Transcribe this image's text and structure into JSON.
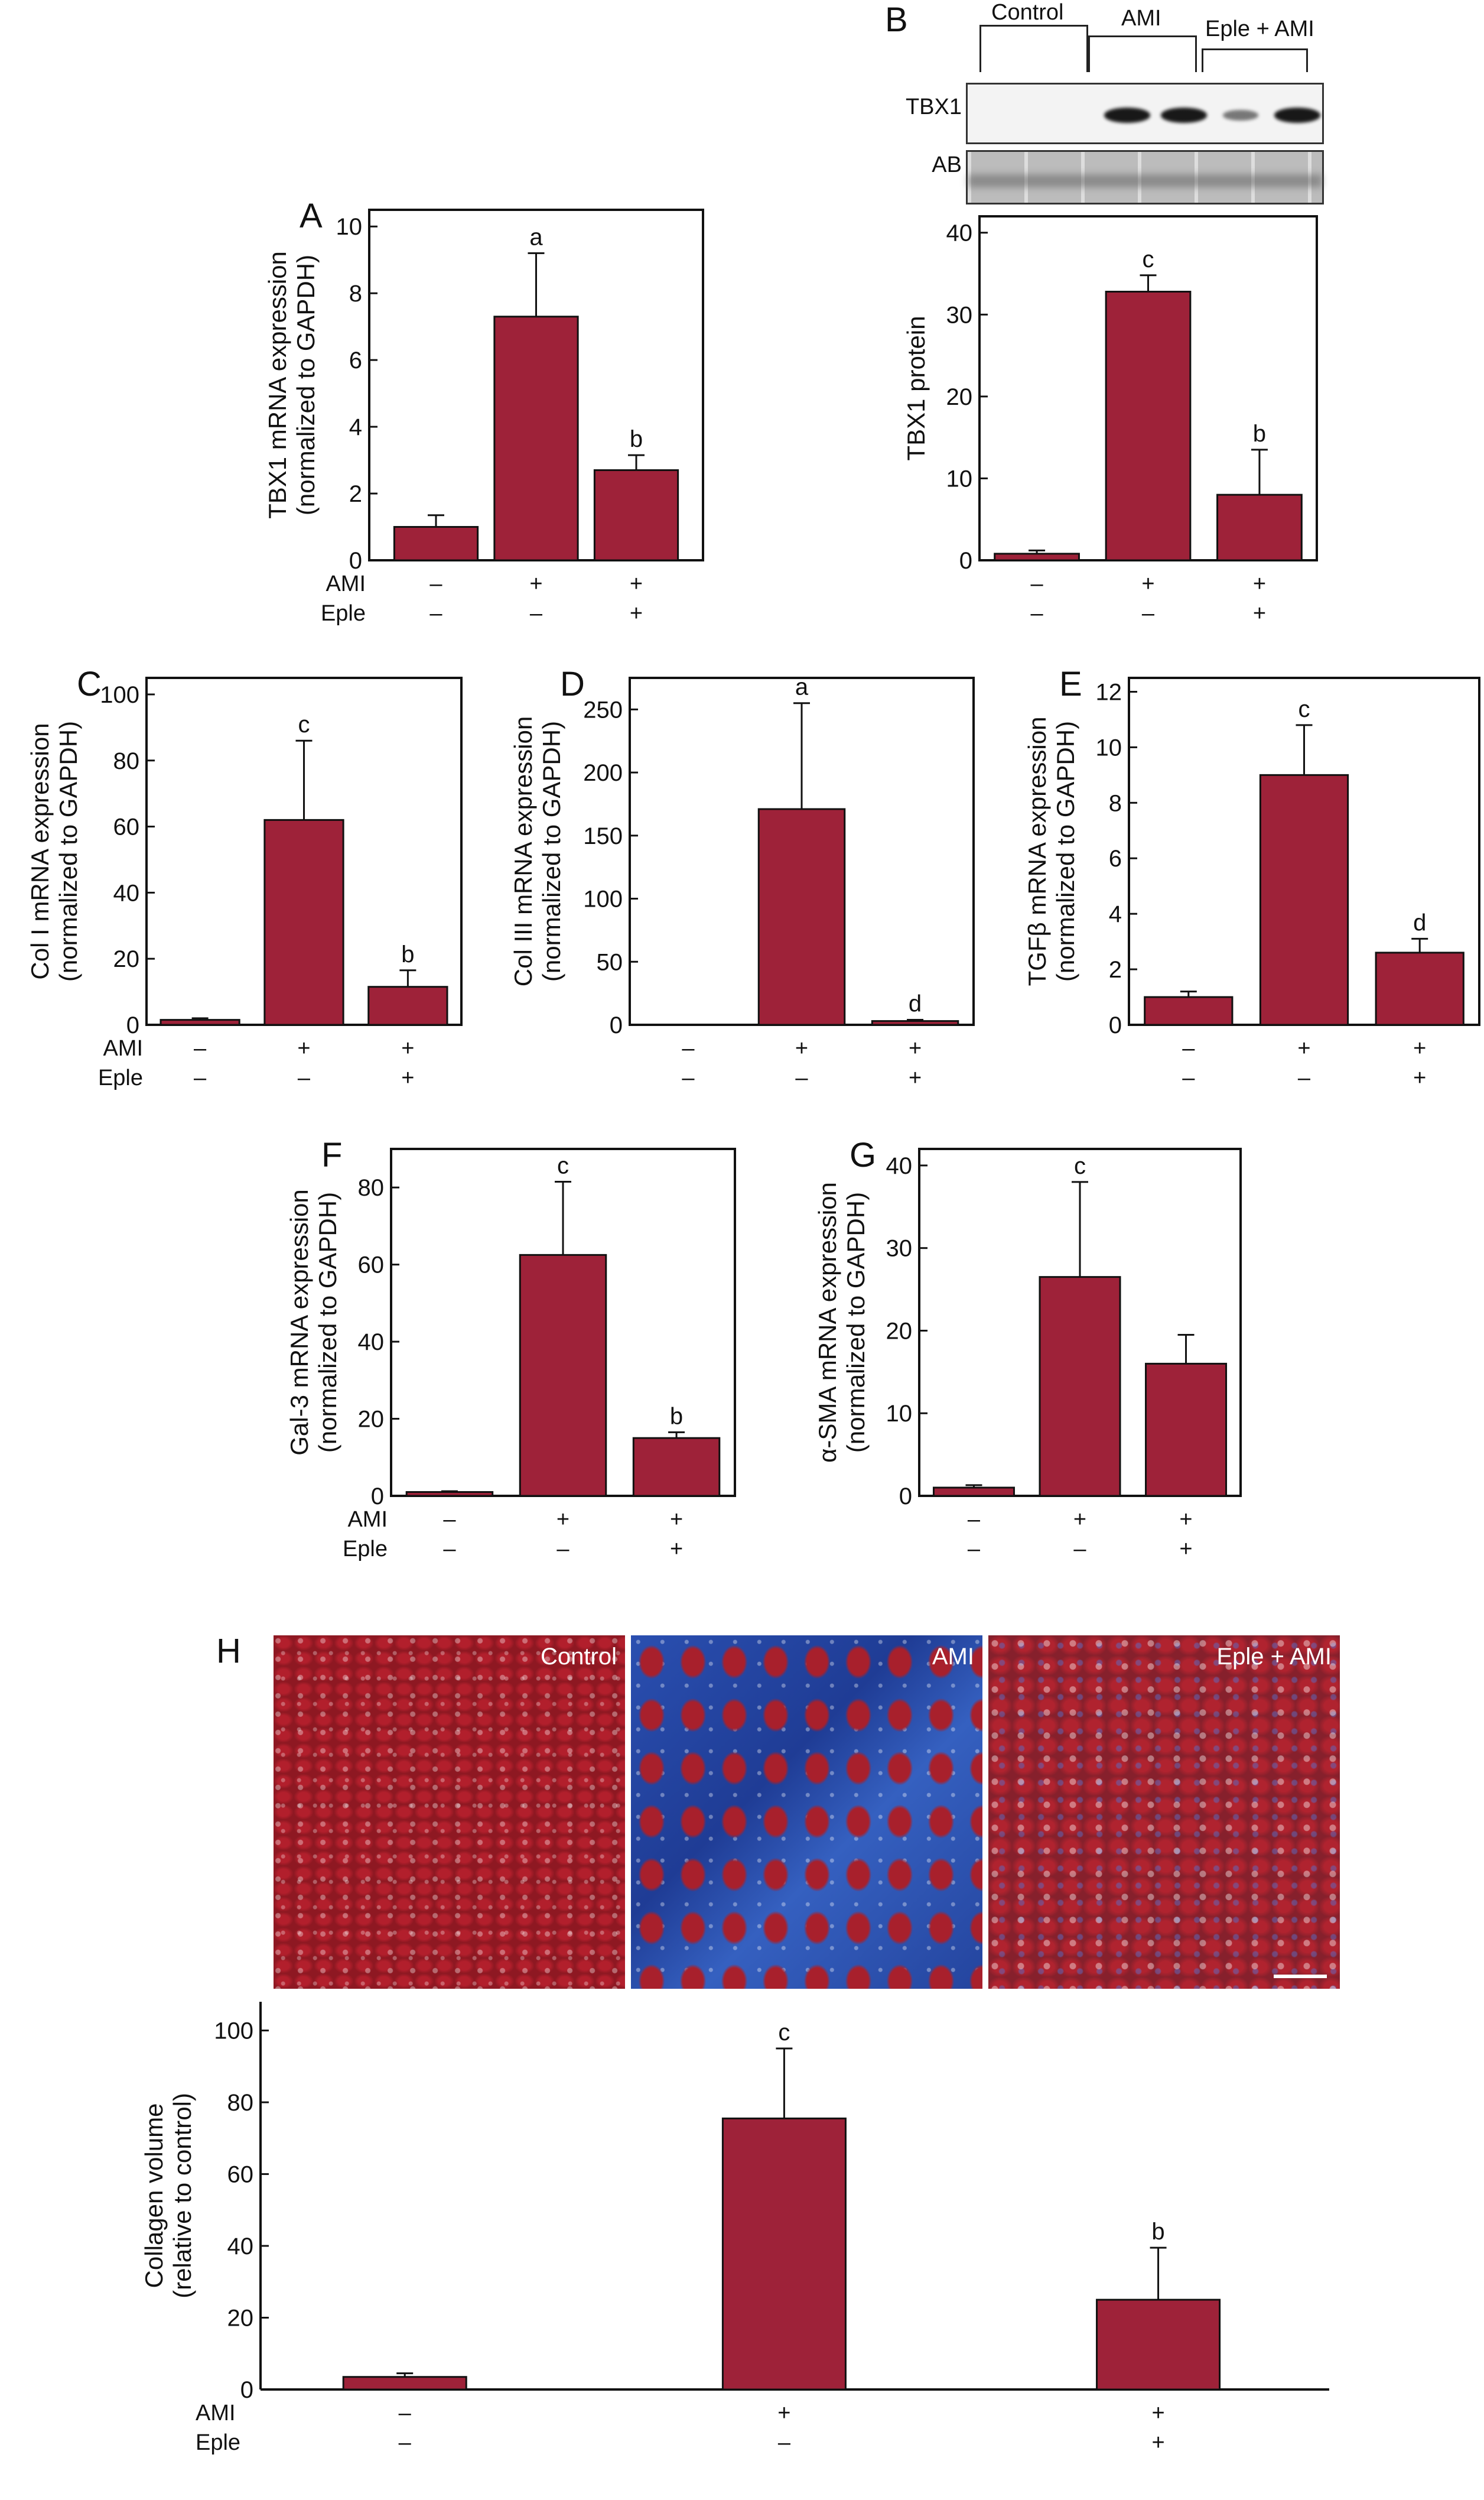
{
  "colors": {
    "bar": "#9e2239",
    "axis": "#111111"
  },
  "blot": {
    "panel_letter": "B",
    "groups": [
      "Control",
      "AMI",
      "Eple + AMI"
    ],
    "rows": [
      "TBX1",
      "AB"
    ],
    "tbx1_band_intensity": [
      0,
      0,
      0.95,
      0.95,
      0.35,
      0.95
    ]
  },
  "histology": {
    "panel_letter": "H",
    "images": [
      {
        "label": "Control"
      },
      {
        "label": "AMI"
      },
      {
        "label": "Eple + AMI"
      }
    ]
  },
  "chart_data": [
    {
      "id": "A",
      "panel_letter": "A",
      "type": "bar",
      "ylabel": [
        "TBX1 mRNA expression",
        "(normalized to GAPDH)"
      ],
      "ticks": [
        0,
        2,
        4,
        6,
        8,
        10
      ],
      "ylim": [
        0,
        10.5
      ],
      "values": [
        1.0,
        7.3,
        2.7
      ],
      "error_upper": [
        1.35,
        9.2,
        3.15
      ],
      "letters": [
        "",
        "a",
        "b"
      ],
      "conditions": [
        {
          "label": "AMI",
          "marks": [
            "–",
            "+",
            "+"
          ]
        },
        {
          "label": "Eple",
          "marks": [
            "–",
            "–",
            "+"
          ]
        }
      ]
    },
    {
      "id": "B",
      "panel_letter": "",
      "type": "bar",
      "ylabel": [
        "TBX1 protein"
      ],
      "ticks": [
        0,
        10,
        20,
        30,
        40
      ],
      "ylim": [
        0,
        42
      ],
      "values": [
        0.8,
        32.8,
        8.0
      ],
      "error_upper": [
        1.2,
        34.8,
        13.5
      ],
      "letters": [
        "",
        "c",
        "b"
      ],
      "conditions": [
        {
          "label": "",
          "marks": [
            "–",
            "+",
            "+"
          ]
        },
        {
          "label": "",
          "marks": [
            "–",
            "–",
            "+"
          ]
        }
      ]
    },
    {
      "id": "C",
      "panel_letter": "C",
      "type": "bar",
      "ylabel": [
        "Col I mRNA expression",
        "(normalized to GAPDH)"
      ],
      "ticks": [
        0,
        20,
        40,
        60,
        80,
        100
      ],
      "ylim": [
        0,
        105
      ],
      "values": [
        1.5,
        62,
        11.5
      ],
      "error_upper": [
        2,
        86,
        16.5
      ],
      "letters": [
        "",
        "c",
        "b"
      ],
      "conditions": [
        {
          "label": "AMI",
          "marks": [
            "–",
            "+",
            "+"
          ]
        },
        {
          "label": "Eple",
          "marks": [
            "–",
            "–",
            "+"
          ]
        }
      ]
    },
    {
      "id": "D",
      "panel_letter": "D",
      "type": "bar",
      "ylabel": [
        "Col III mRNA expression",
        "(normalized to GAPDH)"
      ],
      "ticks": [
        0,
        50,
        100,
        150,
        200,
        250
      ],
      "ylim": [
        0,
        275
      ],
      "values": [
        0,
        171,
        3
      ],
      "error_upper": [
        0,
        255,
        4
      ],
      "letters": [
        "",
        "a",
        "d"
      ],
      "conditions": [
        {
          "label": "",
          "marks": [
            "–",
            "+",
            "+"
          ]
        },
        {
          "label": "",
          "marks": [
            "–",
            "–",
            "+"
          ]
        }
      ]
    },
    {
      "id": "E",
      "panel_letter": "E",
      "type": "bar",
      "ylabel": [
        "TGFβ mRNA expression",
        "(normalized to GAPDH)"
      ],
      "ticks": [
        0,
        2,
        4,
        6,
        8,
        10,
        12
      ],
      "ylim": [
        0,
        12.5
      ],
      "values": [
        1.0,
        9.0,
        2.6
      ],
      "error_upper": [
        1.2,
        10.8,
        3.1
      ],
      "letters": [
        "",
        "c",
        "d"
      ],
      "conditions": [
        {
          "label": "",
          "marks": [
            "–",
            "+",
            "+"
          ]
        },
        {
          "label": "",
          "marks": [
            "–",
            "–",
            "+"
          ]
        }
      ]
    },
    {
      "id": "F",
      "panel_letter": "F",
      "type": "bar",
      "ylabel": [
        "Gal-3 mRNA expression",
        "(normalized to GAPDH)"
      ],
      "ticks": [
        0,
        20,
        40,
        60,
        80
      ],
      "ylim": [
        0,
        90
      ],
      "values": [
        1.0,
        62.5,
        15
      ],
      "error_upper": [
        1.2,
        81.5,
        16.5
      ],
      "letters": [
        "",
        "c",
        "b"
      ],
      "conditions": [
        {
          "label": "AMI",
          "marks": [
            "–",
            "+",
            "+"
          ]
        },
        {
          "label": "Eple",
          "marks": [
            "–",
            "–",
            "+"
          ]
        }
      ]
    },
    {
      "id": "G",
      "panel_letter": "G",
      "type": "bar",
      "ylabel": [
        "α-SMA mRNA expression",
        "(normalized to GAPDH)"
      ],
      "ticks": [
        0,
        10,
        20,
        30,
        40
      ],
      "ylim": [
        0,
        42
      ],
      "values": [
        1.0,
        26.5,
        16
      ],
      "error_upper": [
        1.3,
        38,
        19.5
      ],
      "letters": [
        "",
        "c",
        ""
      ],
      "conditions": [
        {
          "label": "",
          "marks": [
            "–",
            "+",
            "+"
          ]
        },
        {
          "label": "",
          "marks": [
            "–",
            "–",
            "+"
          ]
        }
      ]
    },
    {
      "id": "H",
      "panel_letter": "",
      "type": "bar",
      "ylabel": [
        "Collagen volume",
        "(relative to control)"
      ],
      "ticks": [
        0,
        20,
        40,
        60,
        80,
        100
      ],
      "ylim": [
        0,
        108
      ],
      "values": [
        3.5,
        75.5,
        25
      ],
      "error_upper": [
        4.5,
        95,
        39.5
      ],
      "letters": [
        "",
        "c",
        "b"
      ],
      "conditions": [
        {
          "label": "AMI",
          "marks": [
            "–",
            "+",
            "+"
          ]
        },
        {
          "label": "Eple",
          "marks": [
            "–",
            "–",
            "+"
          ]
        }
      ]
    }
  ]
}
